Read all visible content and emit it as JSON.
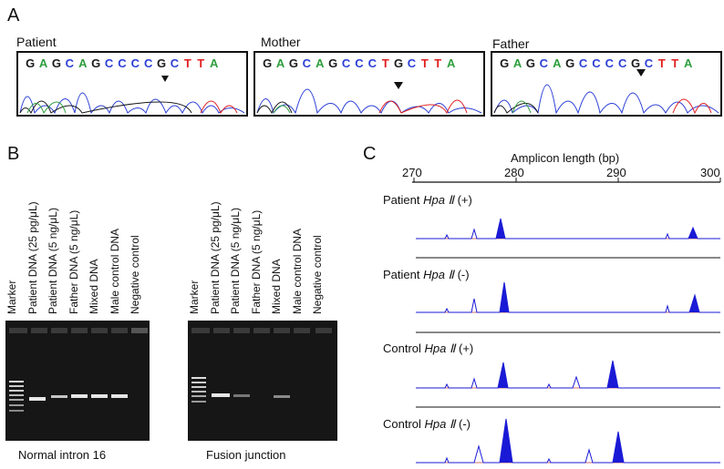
{
  "panelA": {
    "letter": "A",
    "traces": [
      {
        "label": "Patient",
        "sequence": [
          "G",
          "A",
          "G",
          "C",
          "A",
          "G",
          "C",
          "C",
          "C",
          "C",
          "G",
          "C",
          "T",
          "T",
          "A"
        ]
      },
      {
        "label": "Mother",
        "sequence": [
          "G",
          "A",
          "G",
          "C",
          "A",
          "G",
          "C",
          "C",
          "C",
          "T",
          "G",
          "C",
          "T",
          "T",
          "A"
        ]
      },
      {
        "label": "Father",
        "sequence": [
          "G",
          "A",
          "G",
          "C",
          "A",
          "G",
          "C",
          "C",
          "C",
          "C",
          "G",
          "C",
          "T",
          "T",
          "A"
        ]
      }
    ]
  },
  "panelB": {
    "letter": "B",
    "lanes_left": [
      "Marker",
      "Patient DNA (25 pg/μL)",
      "Patient DNA (5 ng/μL)",
      "Father DNA (5 ng/μL)",
      "Mixed DNA",
      "Male control DNA",
      "Negative control"
    ],
    "lanes_right": [
      "Marker",
      "Patient DNA (25 pg/μL)",
      "Patient DNA (5 ng/μL)",
      "Father DNA (5 ng/μL)",
      "Mixed DNA",
      "Male control DNA",
      "Negative control"
    ],
    "caption_left": "Normal intron 16",
    "caption_right": "Fusion junction"
  },
  "panelC": {
    "letter": "C",
    "axis_title": "Amplicon length (bp)",
    "ticks": [
      "270",
      "280",
      "290",
      "300"
    ],
    "traces": [
      {
        "prefix": "Patient ",
        "enzyme": "Hpa Ⅱ",
        "suffix": " (+)"
      },
      {
        "prefix": "Patient ",
        "enzyme": "Hpa Ⅱ",
        "suffix": " (-)"
      },
      {
        "prefix": "Control ",
        "enzyme": "Hpa Ⅱ",
        "suffix": " (+)"
      },
      {
        "prefix": "Control ",
        "enzyme": "Hpa Ⅱ",
        "suffix": " (-)"
      }
    ]
  },
  "colors": {
    "G": "#1a1a1a",
    "A": "#2e9e3e",
    "C": "#2b3fd6",
    "T": "#e02020",
    "peak": "#1a1ad6"
  }
}
